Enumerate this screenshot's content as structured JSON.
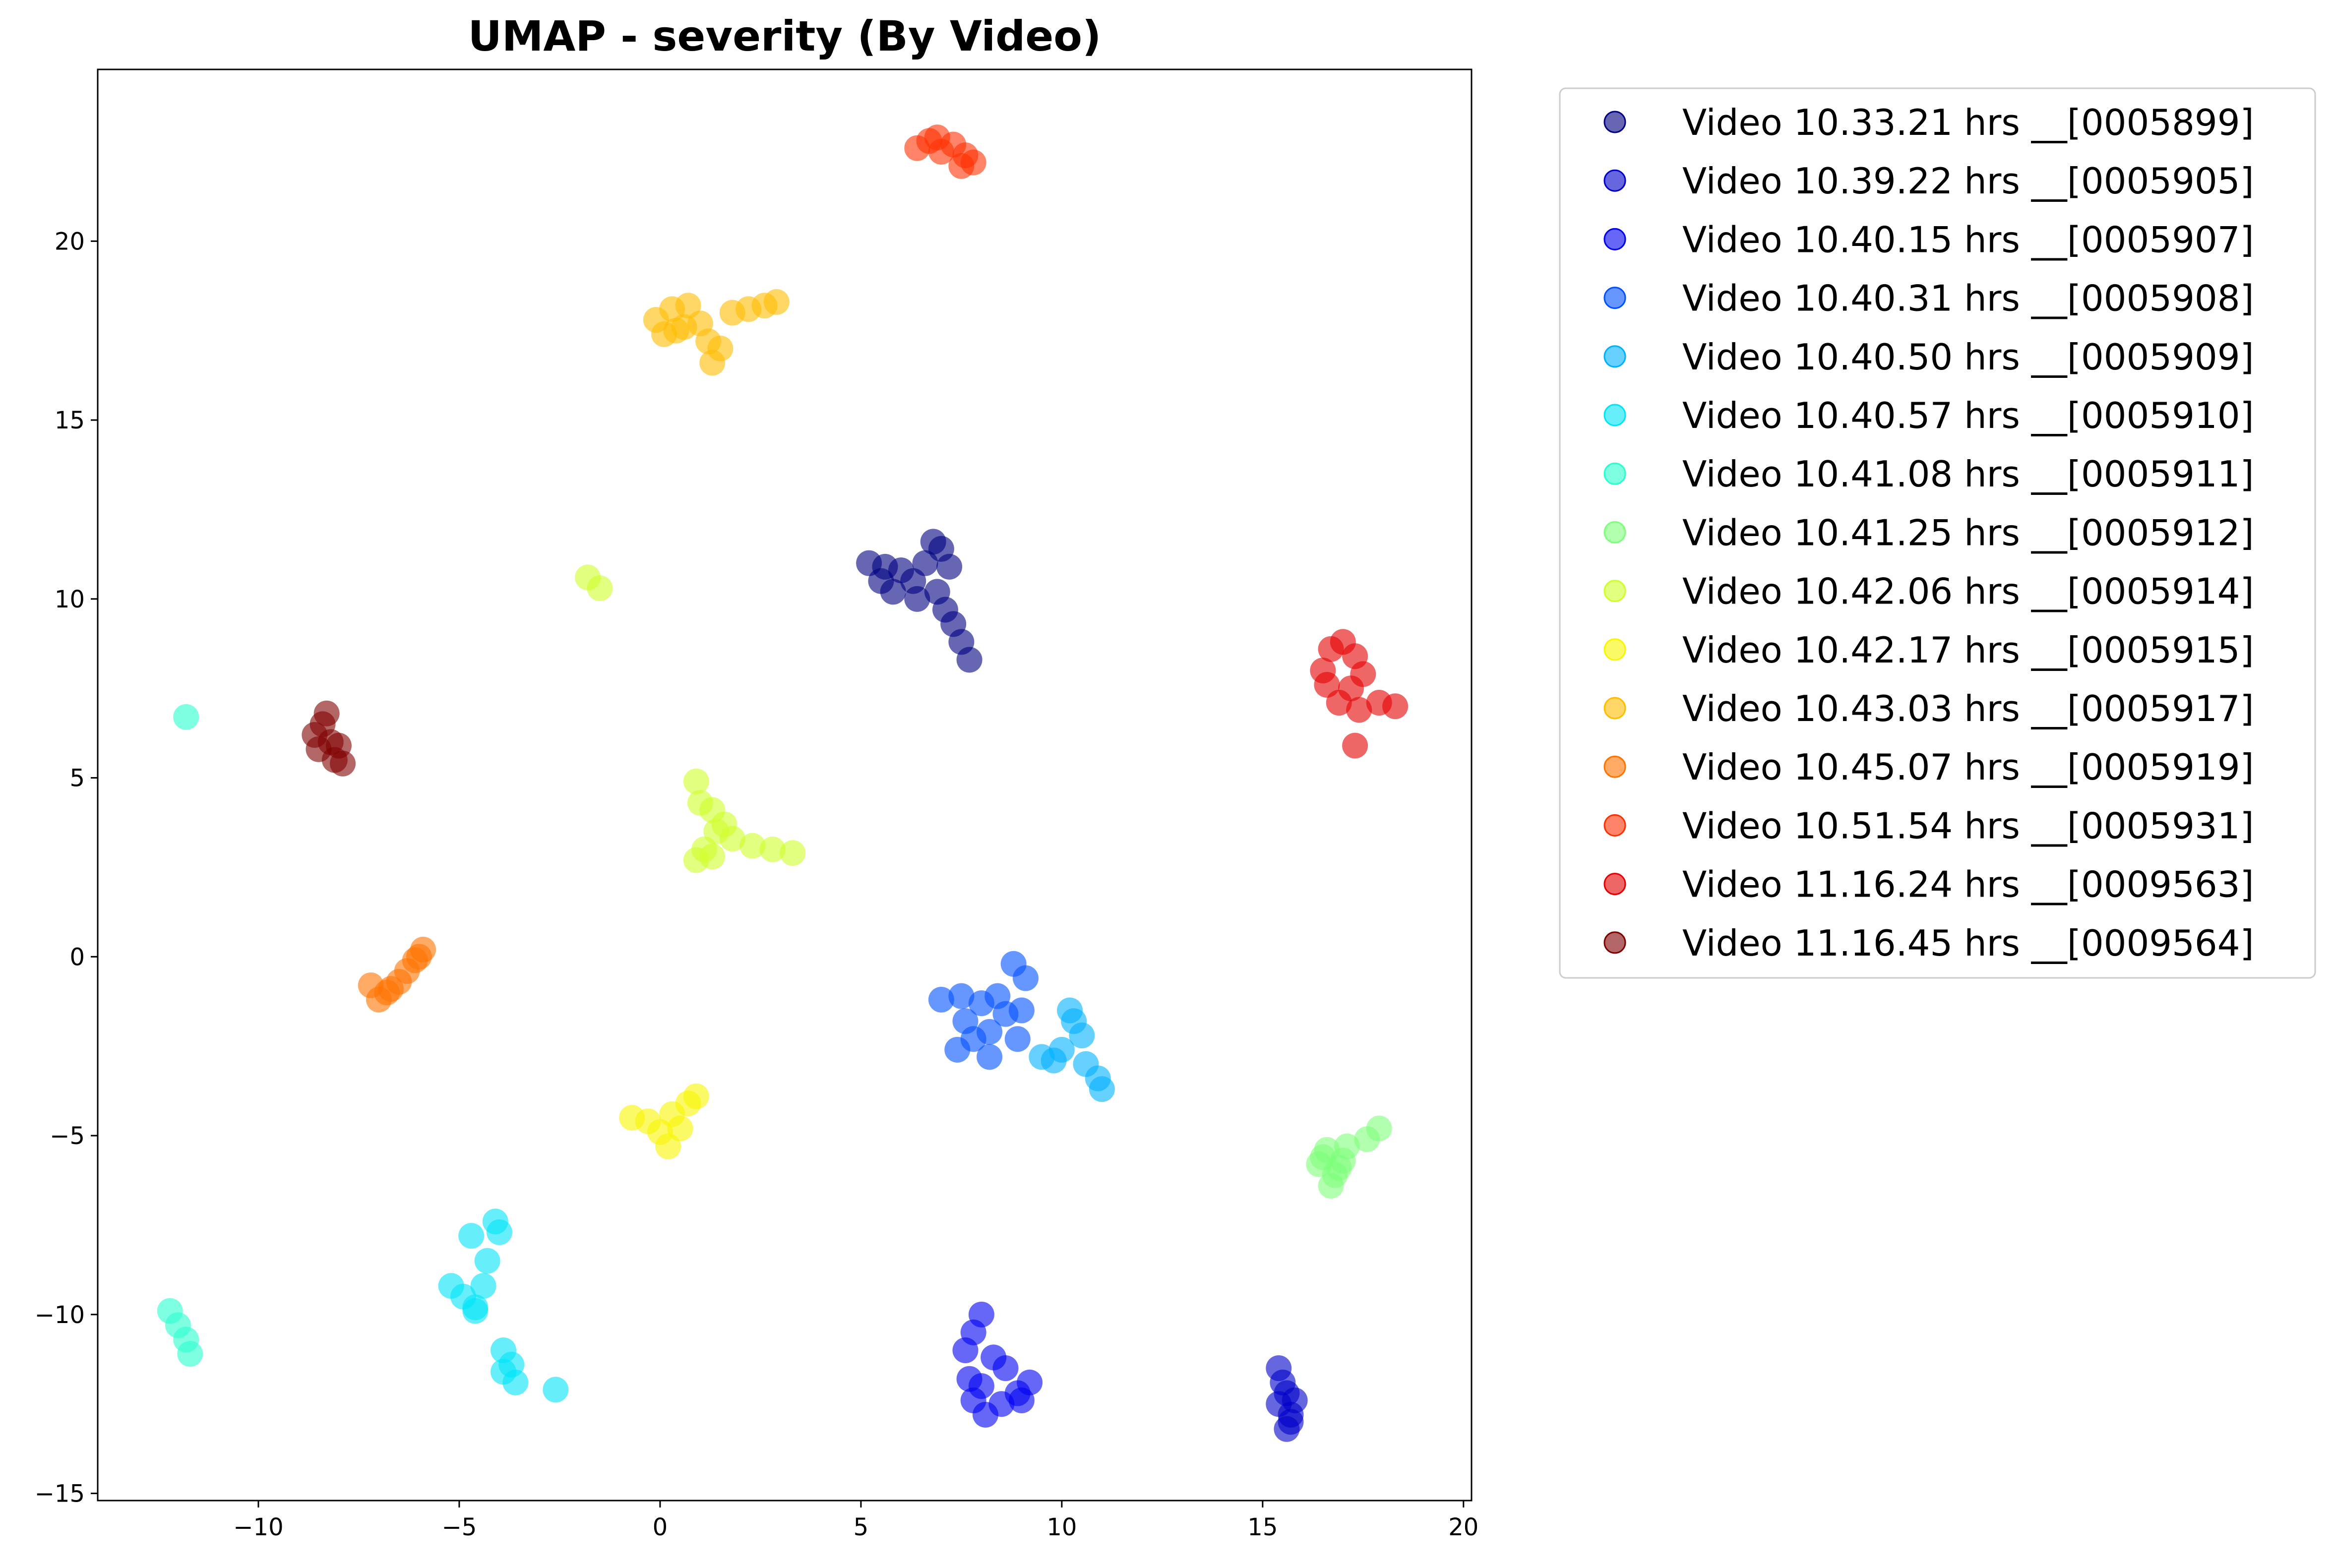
{
  "chart_data": {
    "type": "scatter",
    "title": "UMAP - severity (By Video)",
    "xlabel": "",
    "ylabel": "",
    "xlim": [
      -14,
      20.2
    ],
    "ylim": [
      -15.2,
      24.8
    ],
    "xticks": [
      -10,
      -5,
      0,
      5,
      10,
      15,
      20
    ],
    "yticks": [
      -15,
      -10,
      -5,
      0,
      5,
      10,
      15,
      20
    ],
    "grid": false,
    "legend_position": "outside-top-right",
    "point_alpha": 0.6,
    "series": [
      {
        "name": "Video 10.33.21 hrs __[0005899]",
        "color": "#000080",
        "points": [
          [
            5.2,
            11.0
          ],
          [
            5.5,
            10.5
          ],
          [
            5.8,
            10.2
          ],
          [
            6.0,
            10.8
          ],
          [
            6.3,
            10.5
          ],
          [
            6.6,
            11.0
          ],
          [
            6.8,
            11.6
          ],
          [
            7.0,
            11.4
          ],
          [
            7.2,
            10.9
          ],
          [
            6.9,
            10.2
          ],
          [
            7.1,
            9.7
          ],
          [
            7.3,
            9.3
          ],
          [
            7.5,
            8.8
          ],
          [
            7.7,
            8.3
          ],
          [
            6.4,
            10.0
          ],
          [
            5.6,
            10.9
          ]
        ]
      },
      {
        "name": "Video 10.39.22 hrs __[0005905]",
        "color": "#0000c8",
        "points": [
          [
            15.4,
            -11.5
          ],
          [
            15.4,
            -12.5
          ],
          [
            15.6,
            -12.2
          ],
          [
            15.7,
            -12.8
          ],
          [
            15.8,
            -12.4
          ],
          [
            15.6,
            -13.2
          ],
          [
            15.5,
            -11.9
          ],
          [
            15.7,
            -13.0
          ]
        ]
      },
      {
        "name": "Video 10.40.15 hrs __[0005907]",
        "color": "#0000f1",
        "points": [
          [
            8.0,
            -10.0
          ],
          [
            7.8,
            -10.5
          ],
          [
            7.6,
            -11.0
          ],
          [
            7.7,
            -11.8
          ],
          [
            7.8,
            -12.4
          ],
          [
            8.1,
            -12.8
          ],
          [
            8.5,
            -12.5
          ],
          [
            8.9,
            -12.2
          ],
          [
            9.2,
            -11.9
          ],
          [
            8.6,
            -11.5
          ],
          [
            8.3,
            -11.2
          ],
          [
            8.0,
            -12.0
          ],
          [
            9.0,
            -12.4
          ]
        ]
      },
      {
        "name": "Video 10.40.31 hrs __[0005908]",
        "color": "#0050ff",
        "points": [
          [
            7.0,
            -1.2
          ],
          [
            7.5,
            -1.1
          ],
          [
            8.0,
            -1.3
          ],
          [
            8.4,
            -1.1
          ],
          [
            8.8,
            -0.2
          ],
          [
            9.1,
            -0.6
          ],
          [
            8.6,
            -1.6
          ],
          [
            8.2,
            -2.1
          ],
          [
            7.8,
            -2.3
          ],
          [
            7.4,
            -2.6
          ],
          [
            7.6,
            -1.8
          ],
          [
            8.2,
            -2.8
          ],
          [
            9.0,
            -1.5
          ],
          [
            8.9,
            -2.3
          ]
        ]
      },
      {
        "name": "Video 10.40.50 hrs __[0005909]",
        "color": "#00b0ff",
        "points": [
          [
            9.5,
            -2.8
          ],
          [
            10.0,
            -2.6
          ],
          [
            10.2,
            -1.5
          ],
          [
            10.5,
            -2.2
          ],
          [
            10.6,
            -3.0
          ],
          [
            10.9,
            -3.4
          ],
          [
            11.0,
            -3.7
          ],
          [
            9.8,
            -2.9
          ],
          [
            10.3,
            -1.8
          ]
        ]
      },
      {
        "name": "Video 10.40.57 hrs __[0005910]",
        "color": "#00e4f8",
        "points": [
          [
            -5.2,
            -9.2
          ],
          [
            -4.9,
            -9.5
          ],
          [
            -4.6,
            -9.8
          ],
          [
            -4.4,
            -9.2
          ],
          [
            -4.3,
            -8.5
          ],
          [
            -4.7,
            -7.8
          ],
          [
            -4.1,
            -7.4
          ],
          [
            -4.0,
            -7.7
          ],
          [
            -3.9,
            -11.0
          ],
          [
            -3.7,
            -11.4
          ],
          [
            -3.6,
            -11.9
          ],
          [
            -3.9,
            -11.6
          ],
          [
            -2.6,
            -12.1
          ],
          [
            -4.6,
            -9.9
          ]
        ]
      },
      {
        "name": "Video 10.41.08 hrs __[0005911]",
        "color": "#29ffce",
        "points": [
          [
            -11.8,
            6.7
          ],
          [
            -12.2,
            -9.9
          ],
          [
            -12.0,
            -10.3
          ],
          [
            -11.8,
            -10.7
          ],
          [
            -11.7,
            -11.1
          ]
        ]
      },
      {
        "name": "Video 10.41.25 hrs __[0005912]",
        "color": "#7dff7a",
        "points": [
          [
            16.4,
            -5.8
          ],
          [
            16.6,
            -5.4
          ],
          [
            16.8,
            -6.1
          ],
          [
            16.9,
            -5.9
          ],
          [
            16.7,
            -6.4
          ],
          [
            17.1,
            -5.3
          ],
          [
            17.6,
            -5.1
          ],
          [
            17.9,
            -4.8
          ],
          [
            16.5,
            -5.6
          ],
          [
            17.0,
            -5.7
          ]
        ]
      },
      {
        "name": "Video 10.42.06 hrs __[0005914]",
        "color": "#ceff29",
        "points": [
          [
            -1.8,
            10.6
          ],
          [
            -1.5,
            10.3
          ],
          [
            0.9,
            4.9
          ],
          [
            1.0,
            4.3
          ],
          [
            1.3,
            4.1
          ],
          [
            1.4,
            3.5
          ],
          [
            1.1,
            3.0
          ],
          [
            1.3,
            2.8
          ],
          [
            0.9,
            2.7
          ],
          [
            1.8,
            3.3
          ],
          [
            2.3,
            3.1
          ],
          [
            2.8,
            3.0
          ],
          [
            3.3,
            2.9
          ],
          [
            1.6,
            3.7
          ]
        ]
      },
      {
        "name": "Video 10.42.17 hrs __[0005915]",
        "color": "#f8f500",
        "points": [
          [
            -0.7,
            -4.5
          ],
          [
            -0.3,
            -4.6
          ],
          [
            0.0,
            -4.9
          ],
          [
            0.2,
            -5.3
          ],
          [
            0.5,
            -4.8
          ],
          [
            0.3,
            -4.4
          ],
          [
            0.7,
            -4.1
          ],
          [
            0.9,
            -3.9
          ]
        ]
      },
      {
        "name": "Video 10.43.03 hrs __[0005917]",
        "color": "#ffbd00",
        "points": [
          [
            -0.1,
            17.8
          ],
          [
            0.1,
            17.4
          ],
          [
            0.3,
            18.1
          ],
          [
            0.6,
            17.6
          ],
          [
            0.7,
            18.2
          ],
          [
            1.0,
            17.7
          ],
          [
            1.2,
            17.2
          ],
          [
            1.3,
            16.6
          ],
          [
            1.5,
            17.0
          ],
          [
            1.8,
            18.0
          ],
          [
            2.2,
            18.1
          ],
          [
            2.6,
            18.2
          ],
          [
            2.9,
            18.3
          ],
          [
            0.4,
            17.5
          ]
        ]
      },
      {
        "name": "Video 10.45.07 hrs __[0005919]",
        "color": "#ff7300",
        "points": [
          [
            -7.2,
            -0.8
          ],
          [
            -7.0,
            -1.2
          ],
          [
            -6.8,
            -1.0
          ],
          [
            -6.5,
            -0.7
          ],
          [
            -6.3,
            -0.4
          ],
          [
            -6.1,
            -0.1
          ],
          [
            -5.9,
            0.2
          ],
          [
            -6.0,
            0.0
          ],
          [
            -6.7,
            -0.9
          ]
        ]
      },
      {
        "name": "Video 10.51.54 hrs __[0005931]",
        "color": "#ff3000",
        "points": [
          [
            6.4,
            22.6
          ],
          [
            6.7,
            22.8
          ],
          [
            7.0,
            22.5
          ],
          [
            7.3,
            22.7
          ],
          [
            7.6,
            22.4
          ],
          [
            7.8,
            22.2
          ],
          [
            7.5,
            22.1
          ],
          [
            6.9,
            22.9
          ]
        ]
      },
      {
        "name": "Video 11.16.24 hrs __[0009563]",
        "color": "#e50000",
        "points": [
          [
            16.5,
            8.0
          ],
          [
            16.7,
            8.6
          ],
          [
            17.0,
            8.8
          ],
          [
            17.3,
            8.4
          ],
          [
            17.5,
            7.9
          ],
          [
            17.2,
            7.5
          ],
          [
            16.9,
            7.1
          ],
          [
            17.4,
            6.9
          ],
          [
            17.9,
            7.1
          ],
          [
            18.3,
            7.0
          ],
          [
            17.3,
            5.9
          ],
          [
            16.6,
            7.6
          ]
        ]
      },
      {
        "name": "Video 11.16.45 hrs __[0009564]",
        "color": "#800000",
        "points": [
          [
            -8.4,
            6.5
          ],
          [
            -8.2,
            6.0
          ],
          [
            -8.5,
            5.8
          ],
          [
            -8.1,
            5.5
          ],
          [
            -7.9,
            5.4
          ],
          [
            -8.3,
            6.8
          ],
          [
            -8.6,
            6.2
          ],
          [
            -8.0,
            5.9
          ]
        ]
      }
    ]
  }
}
